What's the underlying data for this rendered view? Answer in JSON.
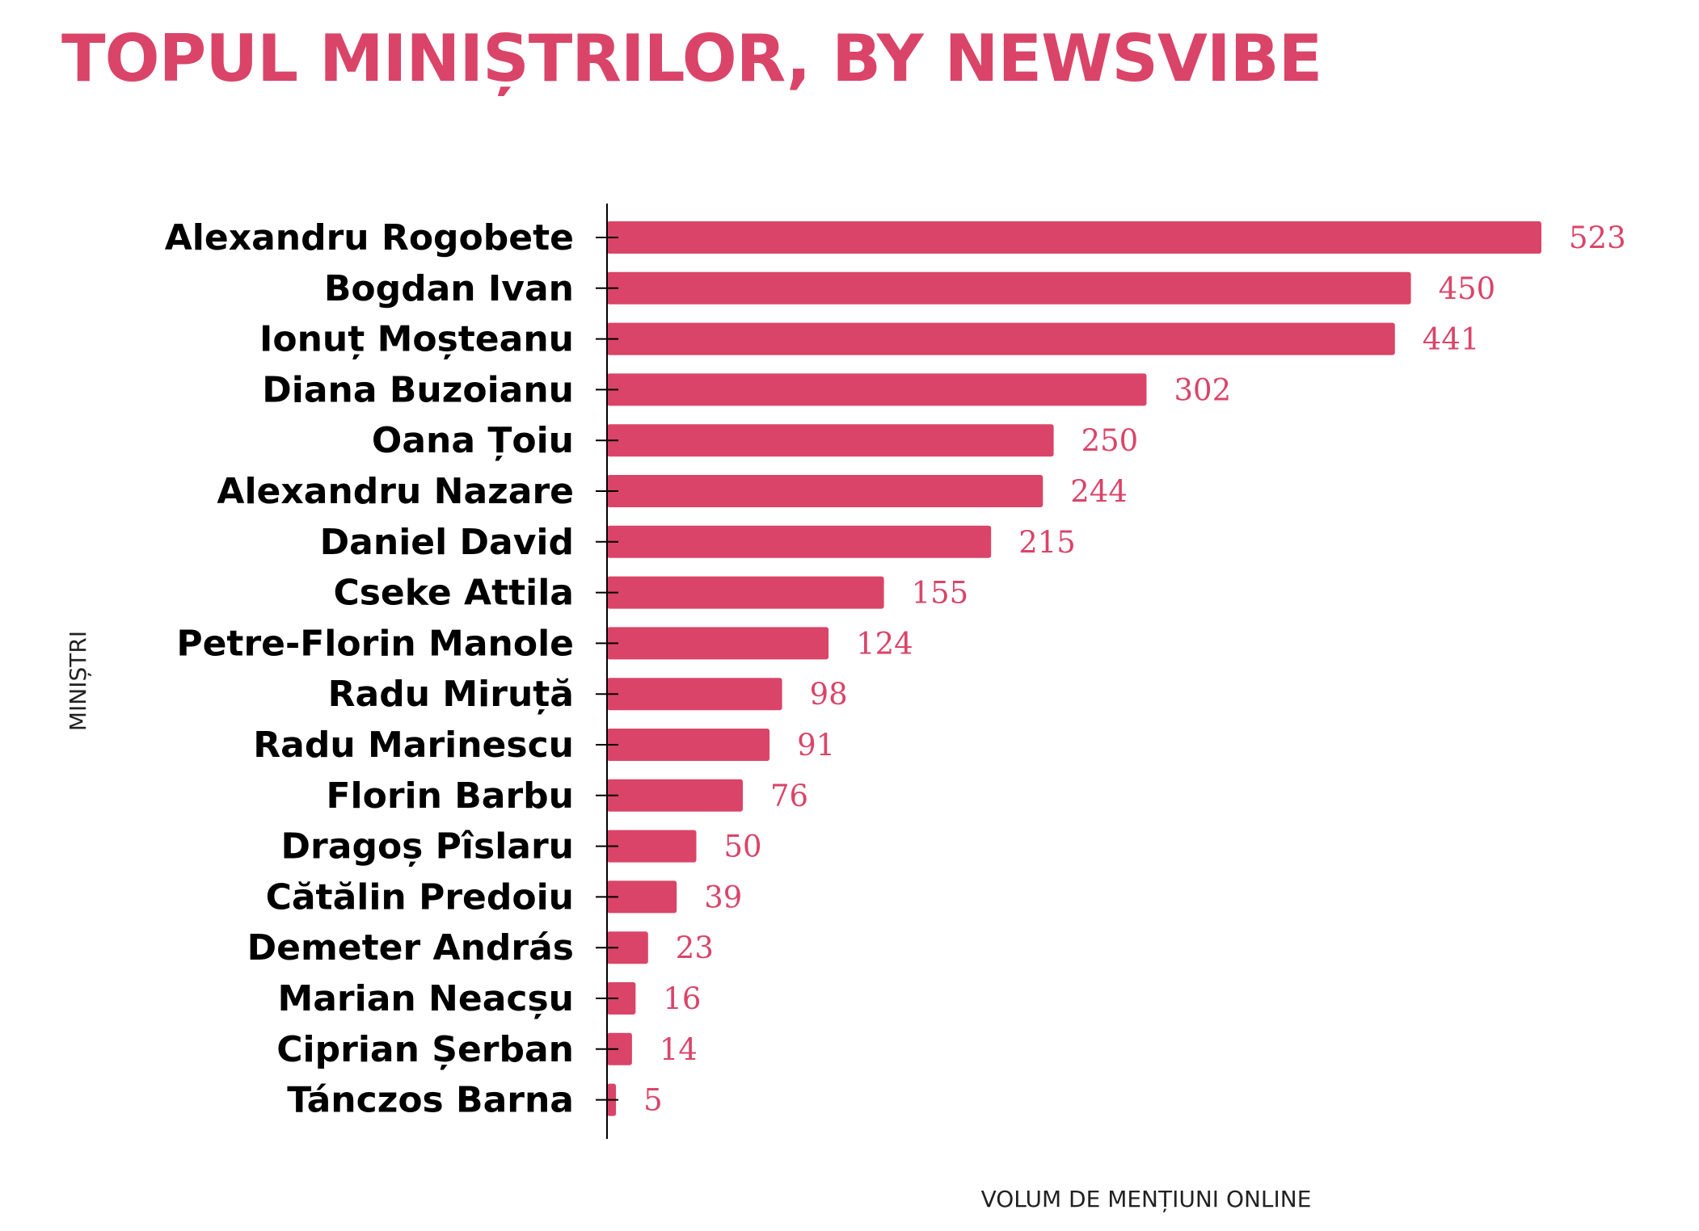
{
  "colors": {
    "accent": "#DA4468",
    "axis": "#000000"
  },
  "chart_data": {
    "type": "bar",
    "orientation": "horizontal",
    "title": "TOPUL MINIȘTRILOR, BY NEWSVIBE",
    "xlabel": "VOLUM DE MENȚIUNI ONLINE",
    "ylabel": "MINIȘTRI",
    "xlim": [
      0,
      523
    ],
    "grid": false,
    "legend": "none",
    "categories": [
      "Alexandru Rogobete",
      "Bogdan Ivan",
      "Ionuț Moșteanu",
      "Diana Buzoianu",
      "Oana Țoiu",
      "Alexandru Nazare",
      "Daniel David",
      "Cseke Attila",
      "Petre-Florin Manole",
      "Radu Miruță",
      "Radu Marinescu",
      "Florin Barbu",
      "Dragoș Pîslaru",
      "Cătălin Predoiu",
      "Demeter András",
      "Marian Neacșu",
      "Ciprian Șerban",
      "Tánczos Barna"
    ],
    "values": [
      523,
      450,
      441,
      302,
      250,
      244,
      215,
      155,
      124,
      98,
      91,
      76,
      50,
      39,
      23,
      16,
      14,
      5
    ]
  }
}
